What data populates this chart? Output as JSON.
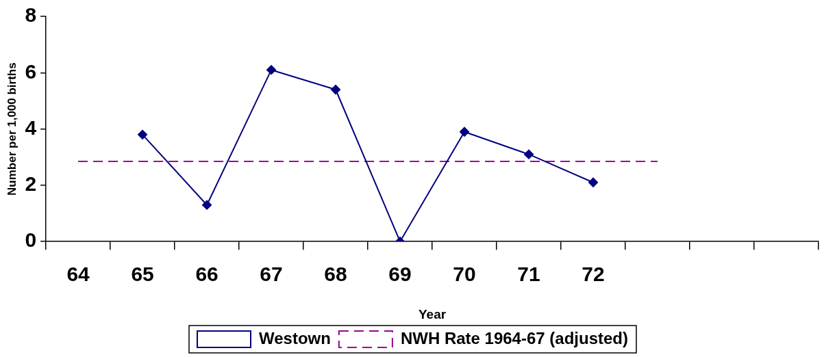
{
  "chart_data": {
    "type": "line",
    "xlabel": "Year",
    "ylabel": "Number per 1,000 births",
    "categories": [
      "64",
      "65",
      "66",
      "67",
      "68",
      "69",
      "70",
      "71",
      "72",
      null,
      null,
      null
    ],
    "series": [
      {
        "name": "Westown",
        "color": "#000080",
        "marker": "diamond",
        "line_style": "solid",
        "values": [
          null,
          3.8,
          1.3,
          6.1,
          5.4,
          0,
          3.9,
          3.1,
          2.1,
          null,
          null,
          null
        ]
      },
      {
        "name": "NWH Rate 1964-67 (adjusted)",
        "color": "#990099",
        "marker": "none",
        "line_style": "dashed",
        "values": [
          2.85,
          2.85,
          2.85,
          2.85,
          2.85,
          2.85,
          2.85,
          2.85,
          2.85,
          2.85,
          null,
          null
        ]
      }
    ],
    "ylim": [
      0,
      8
    ],
    "yticks": [
      0,
      2,
      4,
      6,
      8
    ],
    "grid": false,
    "legend": "bottom"
  }
}
